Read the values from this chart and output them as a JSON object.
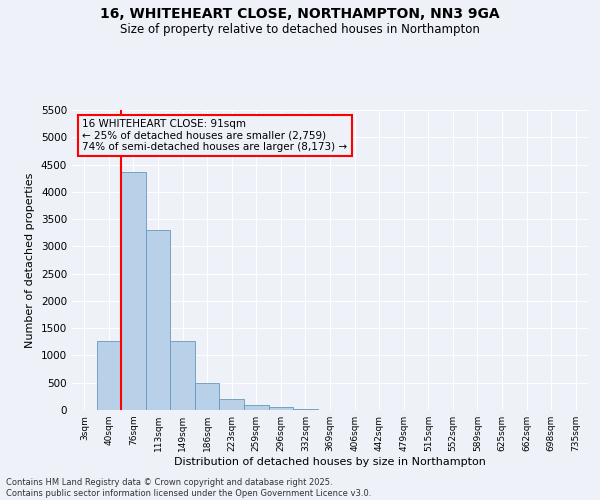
{
  "title": "16, WHITEHEART CLOSE, NORTHAMPTON, NN3 9GA",
  "subtitle": "Size of property relative to detached houses in Northampton",
  "xlabel": "Distribution of detached houses by size in Northampton",
  "ylabel": "Number of detached properties",
  "categories": [
    "3sqm",
    "40sqm",
    "76sqm",
    "113sqm",
    "149sqm",
    "186sqm",
    "223sqm",
    "259sqm",
    "296sqm",
    "332sqm",
    "369sqm",
    "406sqm",
    "442sqm",
    "479sqm",
    "515sqm",
    "552sqm",
    "589sqm",
    "625sqm",
    "662sqm",
    "698sqm",
    "735sqm"
  ],
  "bar_values": [
    0,
    1260,
    4370,
    3300,
    1270,
    500,
    210,
    100,
    60,
    20,
    5,
    0,
    0,
    0,
    0,
    0,
    0,
    0,
    0,
    0,
    0
  ],
  "bar_color": "#b8d0e8",
  "bar_edge_color": "#6699bb",
  "vline_x_index": 1.5,
  "vline_color": "red",
  "annotation_title": "16 WHITEHEART CLOSE: 91sqm",
  "annotation_line1": "← 25% of detached houses are smaller (2,759)",
  "annotation_line2": "74% of semi-detached houses are larger (8,173) →",
  "annotation_box_color": "red",
  "ylim": [
    0,
    5500
  ],
  "yticks": [
    0,
    500,
    1000,
    1500,
    2000,
    2500,
    3000,
    3500,
    4000,
    4500,
    5000,
    5500
  ],
  "footer_line1": "Contains HM Land Registry data © Crown copyright and database right 2025.",
  "footer_line2": "Contains public sector information licensed under the Open Government Licence v3.0.",
  "bg_color": "#eef2f8",
  "grid_color": "#ffffff",
  "figsize": [
    6.0,
    5.0
  ],
  "dpi": 100
}
